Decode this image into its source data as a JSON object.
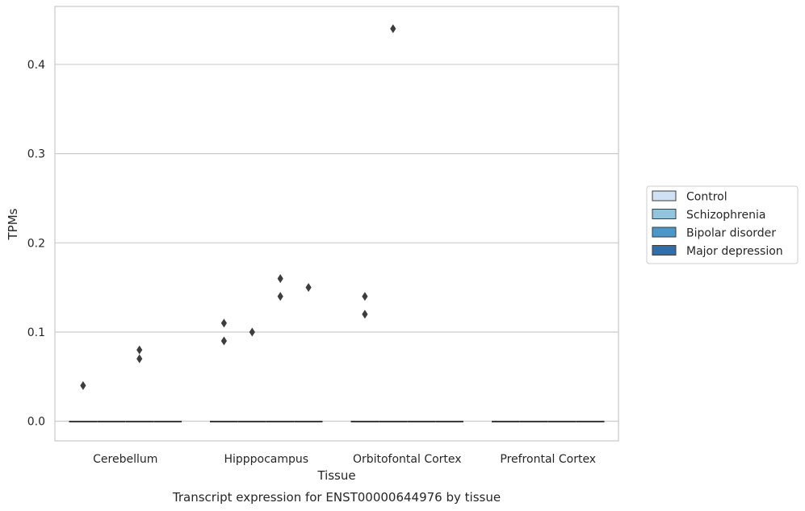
{
  "chart_data": {
    "type": "box",
    "caption": "Transcript expression for ENST00000644976 by tissue",
    "xlabel": "Tissue",
    "ylabel": "TPMs",
    "ylim": [
      -0.022,
      0.465
    ],
    "yticks": [
      0.0,
      0.1,
      0.2,
      0.3,
      0.4
    ],
    "ytick_labels": [
      "0.0",
      "0.1",
      "0.2",
      "0.3",
      "0.4"
    ],
    "grid": "horizontal",
    "legend_position": "right",
    "categories": [
      "Cerebellum",
      "Hipppocampus",
      "Orbitofontal Cortex",
      "Prefrontal Cortex"
    ],
    "series": [
      {
        "name": "Control",
        "color": "#cfe1f2",
        "boxes": [
          {
            "median": 0,
            "q1": 0,
            "q3": 0
          },
          {
            "median": 0,
            "q1": 0,
            "q3": 0
          },
          {
            "median": 0,
            "q1": 0,
            "q3": 0
          },
          {
            "median": 0,
            "q1": 0,
            "q3": 0
          }
        ],
        "outliers": [
          [
            0.04
          ],
          [
            0.09,
            0.11
          ],
          [
            0.12,
            0.14
          ],
          []
        ]
      },
      {
        "name": "Schizophrenia",
        "color": "#93c4de",
        "boxes": [
          {
            "median": 0,
            "q1": 0,
            "q3": 0
          },
          {
            "median": 0,
            "q1": 0,
            "q3": 0
          },
          {
            "median": 0,
            "q1": 0,
            "q3": 0
          },
          {
            "median": 0,
            "q1": 0,
            "q3": 0
          }
        ],
        "outliers": [
          [],
          [
            0.1
          ],
          [
            0.44
          ],
          []
        ]
      },
      {
        "name": "Bipolar disorder",
        "color": "#4b97c9",
        "boxes": [
          {
            "median": 0,
            "q1": 0,
            "q3": 0
          },
          {
            "median": 0,
            "q1": 0,
            "q3": 0
          },
          {
            "median": 0,
            "q1": 0,
            "q3": 0
          },
          {
            "median": 0,
            "q1": 0,
            "q3": 0
          }
        ],
        "outliers": [
          [
            0.07,
            0.08
          ],
          [
            0.14,
            0.16
          ],
          [],
          []
        ]
      },
      {
        "name": "Major depression",
        "color": "#2f6ea9",
        "boxes": [
          {
            "median": 0,
            "q1": 0,
            "q3": 0
          },
          {
            "median": 0,
            "q1": 0,
            "q3": 0
          },
          {
            "median": 0,
            "q1": 0,
            "q3": 0
          },
          {
            "median": 0,
            "q1": 0,
            "q3": 0
          }
        ],
        "outliers": [
          [],
          [
            0.15
          ],
          [],
          []
        ]
      }
    ]
  }
}
